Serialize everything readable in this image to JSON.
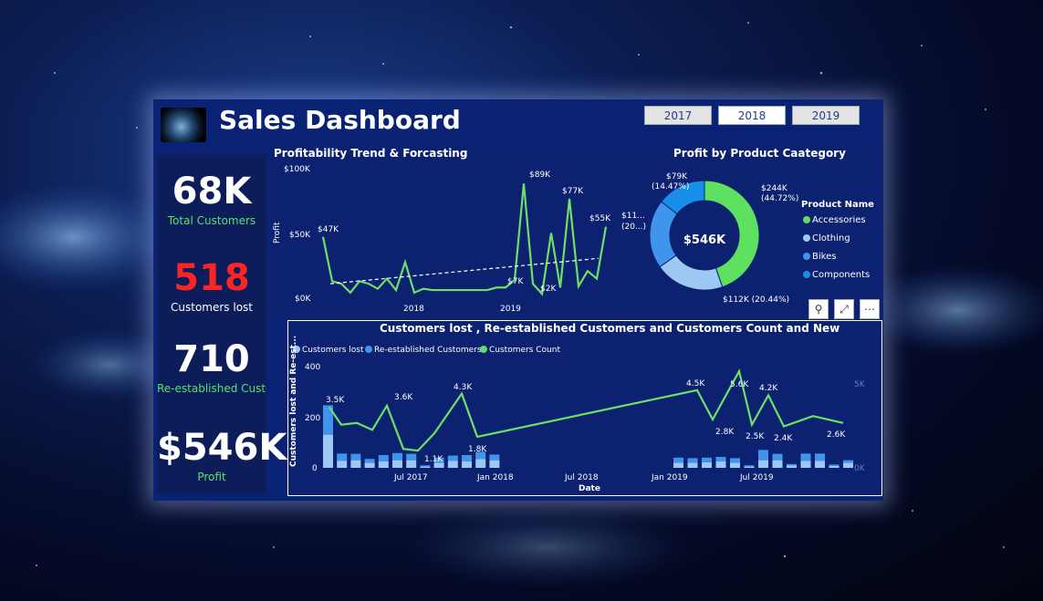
{
  "header": {
    "title": "Sales Dashboard",
    "years": [
      "2017",
      "2018",
      "2019"
    ],
    "selected_year": "2018"
  },
  "kpis": [
    {
      "value": "68K",
      "label": "Total Customers",
      "value_color": "#ffffff",
      "label_color": "#58e06a"
    },
    {
      "value": "518",
      "label": "Customers lost",
      "value_color": "#ff2424",
      "label_color": "#ffffff"
    },
    {
      "value": "710",
      "label": "Re-established Custo...",
      "value_color": "#ffffff",
      "label_color": "#58e06a"
    },
    {
      "value": "$546K",
      "label": "Profit",
      "value_color": "#ffffff",
      "label_color": "#58e06a"
    }
  ],
  "trend": {
    "title": "Profitability Trend & Forcasting",
    "ylabel": "Profit",
    "yticks": [
      "$100K",
      "$50K",
      "$0K"
    ],
    "xticks": [
      "2018",
      "2019"
    ],
    "labels": [
      "$47K",
      "$89K",
      "$77K",
      "$55K",
      "$7K",
      "$2K"
    ]
  },
  "donut": {
    "title": "Profit by Product Caategory",
    "center": "$546K",
    "legend_title": "Product Name",
    "labels": [
      "$244K",
      "(44.72%)",
      "$112K (20.44%)",
      "$79K",
      "(14.47%)",
      "$11...",
      "(20...)"
    ]
  },
  "combo": {
    "title": "Customers lost , Re-established Customers and Customers Count and New",
    "legend": [
      "Customers lost",
      "Re-established Customers",
      "Customers Count"
    ],
    "ylabel": "Customers lost and Re-est...",
    "xlabel": "Date",
    "yticks_left": [
      "400",
      "200",
      "0"
    ],
    "yticks_right": [
      "5K",
      "0K"
    ],
    "xticks": [
      "Jul 2017",
      "Jan 2018",
      "Jul 2018",
      "Jan 2019",
      "Jul 2019"
    ],
    "labels": [
      "3.5K",
      "3.6K",
      "4.3K",
      "1.1K",
      "1.8K",
      "4.5K",
      "5.6K",
      "4.2K",
      "2.8K",
      "2.5K",
      "2.4K",
      "2.6K"
    ]
  },
  "chart_data": [
    {
      "type": "line",
      "title": "Profitability Trend & Forcasting",
      "ylabel": "Profit",
      "ylim": [
        0,
        100000
      ],
      "series": [
        {
          "values": [
            47000,
            12000,
            10000,
            3000,
            12000,
            10000,
            6000,
            14000,
            5000,
            27000,
            3000,
            6000,
            5000,
            5000,
            5000,
            5000,
            5000,
            5000,
            5000,
            7000,
            7000,
            13000,
            89000,
            10000,
            2000,
            50000,
            7000,
            77000,
            8000,
            20000,
            14000,
            55000
          ]
        }
      ],
      "trend_line": [
        10000,
        30000
      ]
    },
    {
      "type": "pie",
      "title": "Profit by Product Caategory",
      "categories": [
        "Accessories",
        "Clothing",
        "Bikes",
        "Components"
      ],
      "values": [
        244000,
        112000,
        111000,
        79000
      ],
      "colors": [
        "#5ee060",
        "#9ec8f4",
        "#3f95ec",
        "#178ee8"
      ]
    },
    {
      "type": "bar",
      "title": "Customers lost , Re-established Customers and Customers Count and New",
      "ylim": [
        0,
        400
      ],
      "series": [
        {
          "name": "Customers lost",
          "values": [
            130,
            28,
            30,
            20,
            25,
            30,
            30,
            5,
            20,
            28,
            25,
            35,
            30,
            20,
            20,
            22,
            25,
            20,
            5,
            30,
            30,
            10,
            28,
            28,
            8,
            20
          ]
        },
        {
          "name": "Re-established Customers",
          "values": [
            115,
            28,
            25,
            15,
            25,
            28,
            25,
            5,
            20,
            20,
            25,
            28,
            22,
            20,
            18,
            18,
            18,
            18,
            5,
            40,
            25,
            5,
            28,
            28,
            5,
            10
          ]
        },
        {
          "name": "Customers Count",
          "values": [
            3500,
            2500,
            2600,
            2200,
            3600,
            1100,
            1000,
            2000,
            4300,
            1800,
            4500,
            2800,
            5600,
            2500,
            4200,
            2400,
            3000,
            2600
          ]
        }
      ],
      "y2lim": [
        0,
        5600
      ]
    }
  ]
}
